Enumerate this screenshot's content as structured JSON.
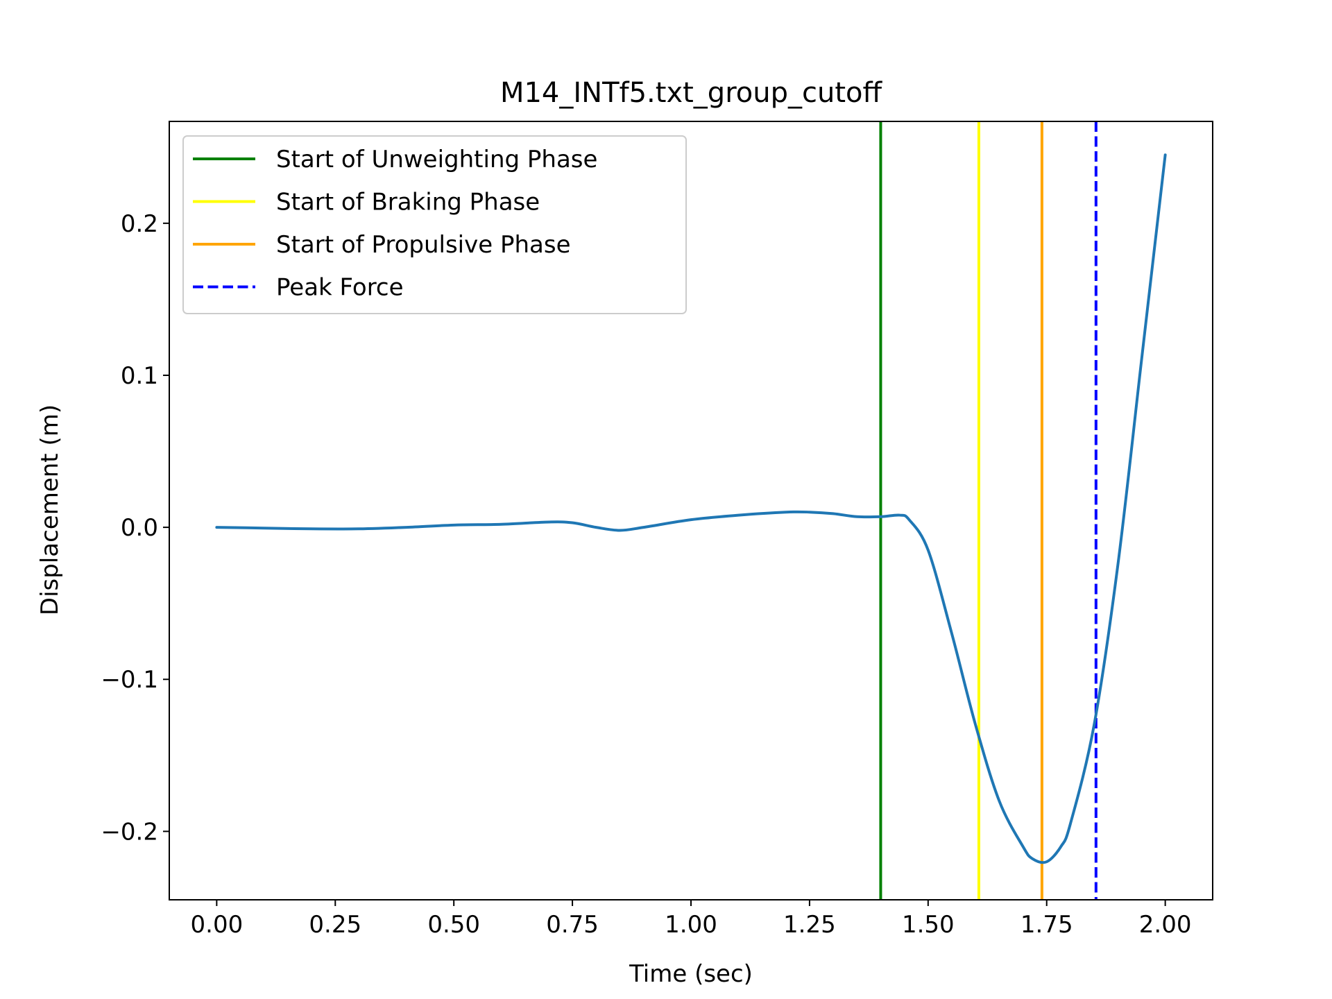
{
  "chart_data": {
    "type": "line",
    "title": "M14_INTf5.txt_group_cutoff",
    "xlabel": "Time (sec)",
    "ylabel": "Displacement (m)",
    "xlim": [
      -0.1,
      2.1
    ],
    "ylim": [
      -0.245,
      0.267
    ],
    "xticks": [
      0.0,
      0.25,
      0.5,
      0.75,
      1.0,
      1.25,
      1.5,
      1.75,
      2.0
    ],
    "xtick_labels": [
      "0.00",
      "0.25",
      "0.50",
      "0.75",
      "1.00",
      "1.25",
      "1.50",
      "1.75",
      "2.00"
    ],
    "yticks": [
      -0.2,
      -0.1,
      0.0,
      0.1,
      0.2
    ],
    "ytick_labels": [
      "−0.2",
      "−0.1",
      "0.0",
      "0.1",
      "0.2"
    ],
    "grid": false,
    "legend_position": "top-left",
    "series": [
      {
        "color": "#1f77b4",
        "x": [
          0.0,
          0.1,
          0.2,
          0.3,
          0.4,
          0.5,
          0.6,
          0.7,
          0.75,
          0.8,
          0.85,
          0.9,
          1.0,
          1.1,
          1.2,
          1.25,
          1.3,
          1.35,
          1.4,
          1.44,
          1.46,
          1.5,
          1.55,
          1.6,
          1.65,
          1.7,
          1.72,
          1.75,
          1.78,
          1.8,
          1.85,
          1.9,
          1.95,
          2.0
        ],
        "y": [
          0.0,
          -0.0005,
          -0.001,
          -0.001,
          0.0,
          0.0015,
          0.002,
          0.0035,
          0.003,
          0.0,
          -0.002,
          0.0,
          0.005,
          0.008,
          0.01,
          0.01,
          0.009,
          0.007,
          0.007,
          0.008,
          0.005,
          -0.015,
          -0.07,
          -0.13,
          -0.18,
          -0.21,
          -0.218,
          -0.22,
          -0.21,
          -0.195,
          -0.13,
          -0.025,
          0.11,
          0.245
        ]
      }
    ],
    "vlines": [
      {
        "name": "Start of Unweighting Phase",
        "x": 1.4,
        "color": "#008000",
        "style": "solid"
      },
      {
        "name": "Start of Braking Phase",
        "x": 1.607,
        "color": "#ffff00",
        "style": "solid"
      },
      {
        "name": "Start of Propulsive Phase",
        "x": 1.74,
        "color": "#ffa500",
        "style": "solid"
      },
      {
        "name": "Peak Force",
        "x": 1.854,
        "color": "#0000ff",
        "style": "dashed"
      }
    ]
  }
}
